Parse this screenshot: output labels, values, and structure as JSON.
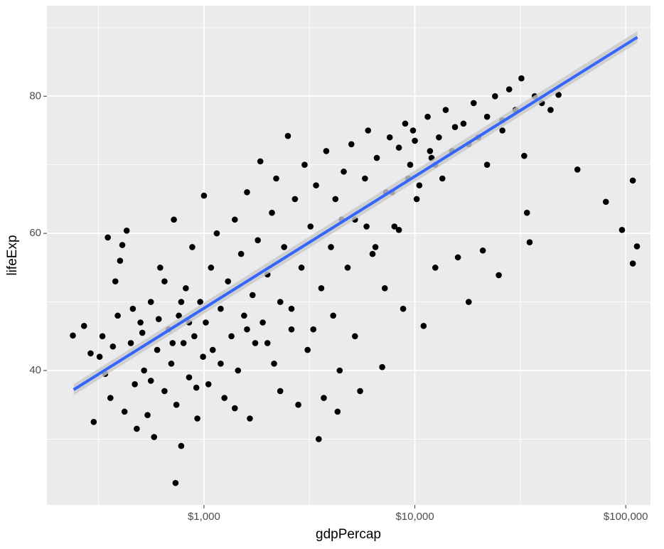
{
  "chart_data": {
    "type": "scatter",
    "x_label": "gdpPercap",
    "y_label": "lifeExp",
    "log_x": true,
    "grid": true,
    "point_color": "#000000",
    "xlim": [
      180,
      131000
    ],
    "ylim": [
      20.4,
      93.2
    ],
    "xticks": [
      {
        "value": 1000,
        "label": "$1,000"
      },
      {
        "value": 10000,
        "label": "$10,000"
      },
      {
        "value": 100000,
        "label": "$100,000"
      }
    ],
    "yticks": [
      40,
      60,
      80
    ],
    "x": [
      300,
      320,
      330,
      350,
      360,
      380,
      390,
      400,
      420,
      430,
      450,
      470,
      480,
      500,
      520,
      540,
      560,
      580,
      600,
      620,
      650,
      680,
      700,
      720,
      740,
      760,
      780,
      800,
      820,
      850,
      880,
      900,
      930,
      960,
      990,
      733,
      1000,
      1020,
      1050,
      1080,
      1100,
      1150,
      1200,
      1250,
      1300,
      1350,
      1400,
      1450,
      1500,
      1550,
      1600,
      1650,
      1700,
      1750,
      1800,
      1850,
      1900,
      2000,
      2100,
      2150,
      2200,
      2300,
      2400,
      2500,
      2600,
      2700,
      2800,
      2900,
      3000,
      3100,
      3200,
      3400,
      3500,
      3600,
      3800,
      4000,
      4200,
      4400,
      4600,
      4800,
      5000,
      5200,
      5500,
      5800,
      6000,
      6300,
      6600,
      7000,
      7300,
      7600,
      8000,
      8400,
      8800,
      9000,
      9500,
      10000,
      10500,
      11000,
      11500,
      12000,
      12500,
      13000,
      14000,
      15000,
      16000,
      17000,
      18000,
      19000,
      20000,
      21000,
      22000,
      24000,
      25000,
      26000,
      28000,
      30000,
      32000,
      33000,
      34000,
      35000,
      37000,
      40000,
      44000,
      48000,
      59000,
      80500,
      96000,
      108000,
      108000,
      113000,
      239,
      270,
      290,
      340,
      370,
      410,
      460,
      510,
      560,
      610,
      650,
      710,
      780,
      850,
      920,
      1200,
      1600,
      2000,
      2600,
      3300,
      4100,
      5200,
      6500,
      7200,
      8400,
      9300,
      10200,
      11800,
      13500,
      15500,
      18000,
      22000,
      26000,
      3700,
      4300,
      2300,
      1400,
      5900,
      4500,
      7800,
      9800,
      12500
    ],
    "y": [
      32.5,
      42,
      45,
      59.4,
      36,
      53,
      48,
      56,
      34,
      60.4,
      44,
      38,
      31.5,
      47,
      40,
      33.5,
      50,
      30.3,
      43,
      55,
      37,
      46,
      41,
      62,
      35,
      48,
      29,
      44,
      52,
      39,
      58,
      45,
      33,
      50,
      42,
      23.6,
      65.5,
      47,
      38,
      55,
      43,
      60,
      49,
      36,
      53,
      45,
      62,
      40,
      57,
      48,
      66,
      33,
      51,
      44,
      59,
      70.5,
      47,
      54,
      63,
      41,
      68,
      50,
      58,
      74.2,
      46,
      65,
      35,
      55,
      70,
      43,
      61,
      67,
      30,
      52,
      72,
      58,
      65,
      40,
      69,
      55,
      73,
      62,
      37,
      68,
      75,
      57,
      71,
      40.5,
      66,
      74,
      61,
      72.5,
      49,
      76,
      70,
      73.5,
      67,
      46.5,
      77,
      71,
      55,
      74,
      78,
      72,
      56.5,
      76,
      50,
      79,
      74,
      57.5,
      77,
      80,
      53.9,
      75,
      81,
      78,
      82.6,
      71.3,
      63,
      58.7,
      80,
      79,
      78,
      80.2,
      69.3,
      64.6,
      60.5,
      67.7,
      55.6,
      58.1,
      45.1,
      46.5,
      42.5,
      39.5,
      43.5,
      58.3,
      49,
      45.5,
      38.5,
      47.5,
      53,
      44,
      50,
      47,
      37.5,
      41,
      46,
      44,
      49,
      46,
      48,
      45,
      58,
      52,
      60.5,
      68,
      65,
      72,
      68,
      75.5,
      73,
      70,
      76.5,
      36,
      34,
      37,
      34.5,
      61,
      62,
      66,
      75,
      70
    ],
    "fit": {
      "color": "#3366ff",
      "band_color": "#c8c8c8",
      "x": [
        241,
        113523
      ],
      "y": [
        37.2,
        88.6
      ],
      "lower": [
        36.4,
        87.8
      ],
      "upper": [
        38.0,
        89.5
      ]
    }
  }
}
